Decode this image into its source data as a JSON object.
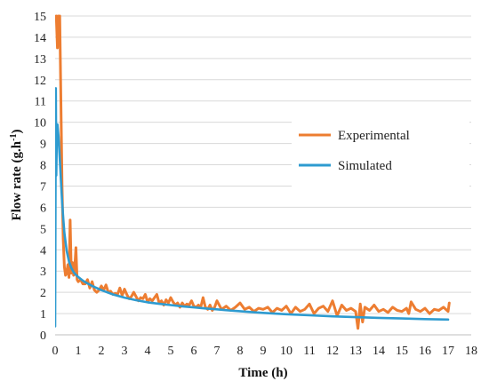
{
  "chart_data": {
    "type": "line",
    "xlabel": "Time (h)",
    "ylabel_main": "Flow rate (g.h",
    "ylabel_sup": "-1",
    "ylabel_close": ")",
    "xlim": [
      0,
      18
    ],
    "ylim": [
      0,
      15
    ],
    "x_ticks": [
      0,
      1,
      2,
      3,
      4,
      5,
      6,
      7,
      8,
      9,
      10,
      11,
      12,
      13,
      14,
      15,
      16,
      17,
      18
    ],
    "y_ticks": [
      0,
      1,
      2,
      3,
      4,
      5,
      6,
      7,
      8,
      9,
      10,
      11,
      12,
      13,
      14,
      15
    ],
    "grid": "horizontal",
    "legend_position": "right-middle",
    "series": [
      {
        "name": "Experimental",
        "color": "#ED7D31",
        "x": [
          0.05,
          0.1,
          0.13,
          0.17,
          0.2,
          0.25,
          0.3,
          0.35,
          0.4,
          0.45,
          0.5,
          0.55,
          0.6,
          0.65,
          0.7,
          0.75,
          0.8,
          0.85,
          0.9,
          0.95,
          1.0,
          1.1,
          1.2,
          1.3,
          1.4,
          1.5,
          1.6,
          1.7,
          1.8,
          1.9,
          2.0,
          2.1,
          2.2,
          2.3,
          2.4,
          2.5,
          2.6,
          2.7,
          2.8,
          2.9,
          3.0,
          3.1,
          3.2,
          3.3,
          3.4,
          3.5,
          3.6,
          3.7,
          3.8,
          3.9,
          4.0,
          4.1,
          4.2,
          4.3,
          4.4,
          4.5,
          4.6,
          4.7,
          4.8,
          4.9,
          5.0,
          5.1,
          5.2,
          5.3,
          5.4,
          5.5,
          5.6,
          5.7,
          5.8,
          5.9,
          6.0,
          6.1,
          6.2,
          6.3,
          6.4,
          6.5,
          6.6,
          6.7,
          6.8,
          6.9,
          7.0,
          7.2,
          7.4,
          7.6,
          7.8,
          8.0,
          8.2,
          8.4,
          8.6,
          8.8,
          9.0,
          9.2,
          9.4,
          9.6,
          9.8,
          10.0,
          10.2,
          10.4,
          10.6,
          10.8,
          11.0,
          11.2,
          11.4,
          11.6,
          11.8,
          12.0,
          12.2,
          12.4,
          12.6,
          12.8,
          13.0,
          13.1,
          13.2,
          13.3,
          13.4,
          13.6,
          13.8,
          14.0,
          14.2,
          14.4,
          14.6,
          14.8,
          15.0,
          15.2,
          15.3,
          15.4,
          15.6,
          15.8,
          16.0,
          16.2,
          16.4,
          16.6,
          16.8,
          17.0,
          17.05
        ],
        "y": [
          15,
          13.5,
          15,
          14,
          15,
          11,
          7,
          4.5,
          3.2,
          2.8,
          2.9,
          3.3,
          2.7,
          5.4,
          2.9,
          3.4,
          2.8,
          3.2,
          4.1,
          2.6,
          2.5,
          2.6,
          2.4,
          2.4,
          2.6,
          2.2,
          2.5,
          2.1,
          2.0,
          2.1,
          2.3,
          2.1,
          2.35,
          2.0,
          2.05,
          1.9,
          1.95,
          1.9,
          2.2,
          1.85,
          2.15,
          1.9,
          1.7,
          1.8,
          2.0,
          1.8,
          1.6,
          1.75,
          1.7,
          1.9,
          1.55,
          1.7,
          1.6,
          1.75,
          1.9,
          1.5,
          1.6,
          1.4,
          1.65,
          1.5,
          1.75,
          1.55,
          1.4,
          1.5,
          1.3,
          1.5,
          1.35,
          1.45,
          1.4,
          1.6,
          1.35,
          1.3,
          1.4,
          1.3,
          1.75,
          1.3,
          1.2,
          1.4,
          1.15,
          1.3,
          1.6,
          1.2,
          1.35,
          1.15,
          1.3,
          1.5,
          1.2,
          1.3,
          1.1,
          1.25,
          1.2,
          1.3,
          1.05,
          1.25,
          1.15,
          1.35,
          1.0,
          1.3,
          1.1,
          1.2,
          1.45,
          1.0,
          1.25,
          1.35,
          1.1,
          1.6,
          0.9,
          1.4,
          1.15,
          1.25,
          1.1,
          0.3,
          1.45,
          0.6,
          1.3,
          1.15,
          1.4,
          1.1,
          1.2,
          1.05,
          1.3,
          1.15,
          1.1,
          1.25,
          1.0,
          1.55,
          1.2,
          1.1,
          1.25,
          1.0,
          1.2,
          1.15,
          1.3,
          1.1,
          1.5
        ]
      },
      {
        "name": "Simulated",
        "color": "#2E9BD0",
        "x": [
          0.0,
          0.03,
          0.05,
          0.08,
          0.1,
          0.15,
          0.2,
          0.25,
          0.3,
          0.35,
          0.4,
          0.5,
          0.6,
          0.7,
          0.8,
          0.9,
          1.0,
          1.2,
          1.4,
          1.6,
          1.8,
          2.0,
          2.5,
          3.0,
          3.5,
          4.0,
          4.5,
          5.0,
          5.5,
          6.0,
          6.5,
          7.0,
          7.5,
          8.0,
          8.5,
          9.0,
          9.5,
          10.0,
          11.0,
          12.0,
          13.0,
          14.0,
          15.0,
          16.0,
          17.0
        ],
        "y": [
          0.4,
          11.6,
          7.5,
          9.8,
          9.9,
          9.3,
          8.3,
          7.3,
          6.3,
          5.5,
          4.8,
          3.95,
          3.45,
          3.15,
          2.95,
          2.82,
          2.72,
          2.55,
          2.42,
          2.3,
          2.2,
          2.1,
          1.9,
          1.75,
          1.63,
          1.53,
          1.46,
          1.4,
          1.34,
          1.29,
          1.24,
          1.2,
          1.15,
          1.11,
          1.07,
          1.03,
          1.0,
          0.97,
          0.92,
          0.87,
          0.83,
          0.8,
          0.77,
          0.74,
          0.72
        ]
      }
    ]
  }
}
